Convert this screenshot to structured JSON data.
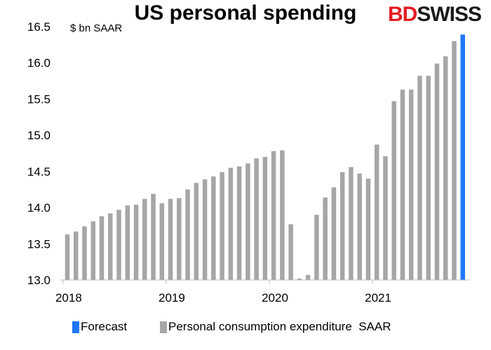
{
  "chart_data": {
    "type": "bar",
    "title": "US personal spending",
    "ylabel": "$ bn SAAR",
    "ylim": [
      13.0,
      16.5
    ],
    "yticks": [
      "13.0",
      "13.5",
      "14.0",
      "14.5",
      "15.0",
      "15.5",
      "16.0",
      "16.5"
    ],
    "xticks": [
      "2018",
      "2019",
      "2020",
      "2021"
    ],
    "series": [
      {
        "name": "Personal consumption expenditure SAAR",
        "color": "#a6a6a6",
        "values": [
          13.63,
          13.67,
          13.74,
          13.81,
          13.88,
          13.92,
          13.97,
          14.03,
          14.04,
          14.12,
          14.19,
          14.06,
          14.12,
          14.13,
          14.25,
          14.34,
          14.39,
          14.43,
          14.49,
          14.55,
          14.57,
          14.61,
          14.68,
          14.7,
          14.78,
          14.79,
          13.77,
          13.02,
          13.07,
          13.9,
          14.14,
          14.28,
          14.49,
          14.56,
          14.47,
          14.4,
          14.87,
          14.71,
          15.47,
          15.63,
          15.63,
          15.82,
          15.82,
          15.99,
          16.09,
          16.3
        ]
      },
      {
        "name": "Forecast",
        "color": "#1f77f6",
        "values": [
          16.39
        ]
      }
    ],
    "legend": [
      "Forecast",
      "Personal consumption expenditure  SAAR"
    ]
  },
  "logo": {
    "part1": "BD",
    "part2": "SWISS"
  }
}
